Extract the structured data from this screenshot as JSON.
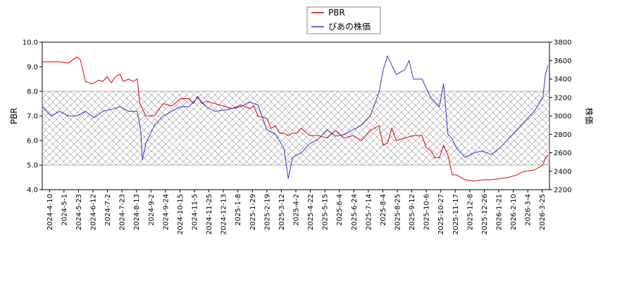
{
  "chart_data": {
    "type": "line",
    "title": "",
    "xlabel": "",
    "ylabel_left": "PBR",
    "ylabel_right": "株価",
    "ylim_left": [
      4.0,
      10.0
    ],
    "ylim_right": [
      2200,
      3800
    ],
    "yticks_left": [
      "4.0",
      "5.0",
      "6.0",
      "7.0",
      "8.0",
      "9.0",
      "10.0"
    ],
    "yticks_right": [
      "2200",
      "2400",
      "2600",
      "2800",
      "3000",
      "3200",
      "3400",
      "3600",
      "3800"
    ],
    "xticks": [
      "2024-4-10",
      "2024-5-1",
      "2024-5-23",
      "2024-6-12",
      "2024-7-2",
      "2024-7-23",
      "2024-8-13",
      "2024-9-2",
      "2024-9-24",
      "2024-10-15",
      "2024-11-5",
      "2024-11-25",
      "2024-12-13",
      "2025-1-8",
      "2025-1-29",
      "2025-2-19",
      "2025-3-12",
      "2025-4-2",
      "2025-4-22",
      "2025-5-15",
      "2025-6-4",
      "2025-6-24",
      "2025-7-14",
      "2025-8-4",
      "2025-8-25",
      "2025-9-12",
      "2025-10-6",
      "2025-10-27",
      "2025-11-17",
      "2025-12-8",
      "2025-12-26",
      "2026-1-21",
      "2026-2-10",
      "2026-3-4",
      "2026-3-25"
    ],
    "hatched_band": [
      5.0,
      8.0
    ],
    "legend_position": "top-center",
    "grid": false,
    "series": [
      {
        "name": "PBR",
        "axis": "left",
        "color": "#dd0000",
        "points": [
          [
            0,
            9.2
          ],
          [
            2,
            9.2
          ],
          [
            3,
            9.15
          ],
          [
            4,
            9.4
          ],
          [
            4.4,
            9.3
          ],
          [
            5,
            8.4
          ],
          [
            5.8,
            8.3
          ],
          [
            6.5,
            8.45
          ],
          [
            7,
            8.4
          ],
          [
            7.5,
            8.6
          ],
          [
            8,
            8.35
          ],
          [
            8.5,
            8.6
          ],
          [
            9,
            8.7
          ],
          [
            9.4,
            8.4
          ],
          [
            10,
            8.5
          ],
          [
            10.5,
            8.4
          ],
          [
            11,
            8.5
          ],
          [
            11.3,
            7.5
          ],
          [
            12,
            7.0
          ],
          [
            13,
            7.0
          ],
          [
            14,
            7.5
          ],
          [
            15,
            7.4
          ],
          [
            16,
            7.7
          ],
          [
            17,
            7.7
          ],
          [
            17.5,
            7.5
          ],
          [
            18,
            7.8
          ],
          [
            18.5,
            7.5
          ],
          [
            19,
            7.6
          ],
          [
            20,
            7.5
          ],
          [
            21,
            7.4
          ],
          [
            22,
            7.3
          ],
          [
            23,
            7.45
          ],
          [
            24,
            7.3
          ],
          [
            24.5,
            7.4
          ],
          [
            25,
            7.0
          ],
          [
            26,
            6.9
          ],
          [
            26.5,
            6.5
          ],
          [
            27,
            6.6
          ],
          [
            27.5,
            6.3
          ],
          [
            28,
            6.3
          ],
          [
            28.5,
            6.2
          ],
          [
            29,
            6.3
          ],
          [
            29.5,
            6.3
          ],
          [
            30,
            6.5
          ],
          [
            31,
            6.2
          ],
          [
            32,
            6.2
          ],
          [
            33,
            6.1
          ],
          [
            34,
            6.4
          ],
          [
            35,
            6.1
          ],
          [
            36,
            6.2
          ],
          [
            37,
            6.0
          ],
          [
            38,
            6.4
          ],
          [
            38.5,
            6.5
          ],
          [
            39,
            6.6
          ],
          [
            39.5,
            5.8
          ],
          [
            40,
            5.9
          ],
          [
            40.5,
            6.5
          ],
          [
            41,
            6.0
          ],
          [
            42,
            6.1
          ],
          [
            43,
            6.2
          ],
          [
            44,
            6.2
          ],
          [
            44.5,
            5.7
          ],
          [
            45,
            5.6
          ],
          [
            45.5,
            5.3
          ],
          [
            46,
            5.3
          ],
          [
            46.5,
            5.8
          ],
          [
            47,
            5.4
          ],
          [
            47.5,
            4.6
          ],
          [
            48,
            4.6
          ],
          [
            49,
            4.4
          ],
          [
            50,
            4.35
          ],
          [
            51,
            4.4
          ],
          [
            52,
            4.4
          ],
          [
            53,
            4.45
          ],
          [
            54,
            4.5
          ],
          [
            55,
            4.6
          ],
          [
            55.5,
            4.7
          ],
          [
            56,
            4.75
          ],
          [
            57,
            4.8
          ],
          [
            58,
            5.0
          ],
          [
            58.3,
            5.3
          ],
          [
            58.6,
            5.4
          ]
        ]
      },
      {
        "name": "ぴあの株価",
        "axis": "right",
        "color": "#3333cc",
        "points": [
          [
            0,
            3100
          ],
          [
            1,
            3000
          ],
          [
            2,
            3050
          ],
          [
            3,
            3000
          ],
          [
            4,
            3000
          ],
          [
            5,
            3050
          ],
          [
            6,
            2980
          ],
          [
            7,
            3050
          ],
          [
            8,
            3070
          ],
          [
            9,
            3100
          ],
          [
            10,
            3050
          ],
          [
            11,
            3050
          ],
          [
            11.4,
            2850
          ],
          [
            11.6,
            2520
          ],
          [
            12,
            2700
          ],
          [
            13,
            2900
          ],
          [
            14,
            3000
          ],
          [
            15,
            3050
          ],
          [
            16,
            3100
          ],
          [
            17,
            3100
          ],
          [
            18,
            3200
          ],
          [
            19,
            3100
          ],
          [
            20,
            3050
          ],
          [
            21,
            3060
          ],
          [
            22,
            3080
          ],
          [
            23,
            3100
          ],
          [
            24,
            3150
          ],
          [
            25,
            3120
          ],
          [
            26,
            2850
          ],
          [
            27,
            2800
          ],
          [
            28,
            2650
          ],
          [
            28.5,
            2320
          ],
          [
            29,
            2550
          ],
          [
            30,
            2600
          ],
          [
            31,
            2700
          ],
          [
            32,
            2750
          ],
          [
            33,
            2850
          ],
          [
            34,
            2780
          ],
          [
            35,
            2800
          ],
          [
            36,
            2850
          ],
          [
            37,
            2900
          ],
          [
            38,
            3000
          ],
          [
            39,
            3250
          ],
          [
            39.5,
            3500
          ],
          [
            40,
            3650
          ],
          [
            41,
            3450
          ],
          [
            42,
            3500
          ],
          [
            42.5,
            3600
          ],
          [
            43,
            3400
          ],
          [
            44,
            3400
          ],
          [
            45,
            3200
          ],
          [
            46,
            3100
          ],
          [
            46.5,
            3350
          ],
          [
            47,
            2800
          ],
          [
            47.5,
            2750
          ],
          [
            48,
            2650
          ],
          [
            49,
            2550
          ],
          [
            50,
            2600
          ],
          [
            51,
            2620
          ],
          [
            52,
            2580
          ],
          [
            53,
            2650
          ],
          [
            54,
            2750
          ],
          [
            55,
            2850
          ],
          [
            56,
            2950
          ],
          [
            57,
            3050
          ],
          [
            58,
            3200
          ],
          [
            58.3,
            3450
          ],
          [
            58.6,
            3550
          ]
        ]
      }
    ]
  }
}
